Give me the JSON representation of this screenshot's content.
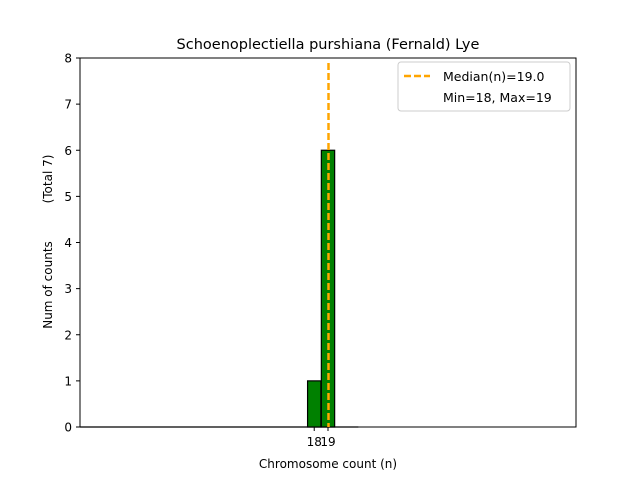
{
  "chart_data": {
    "type": "bar",
    "title": "Schoenoplectiella purshiana (Fernald) Lye",
    "xlabel": "Chromosome count (n)",
    "ylabel_main": "Num of counts",
    "ylabel_total": "(Total 7)",
    "categories": [
      "18",
      "19"
    ],
    "x": [
      18,
      19
    ],
    "values": [
      1,
      6
    ],
    "ylim": [
      0,
      8
    ],
    "yticks": [
      0,
      1,
      2,
      3,
      4,
      5,
      6,
      7,
      8
    ],
    "bar_color": "#008000",
    "median": 19.0,
    "median_color": "#FFA500",
    "legend": {
      "position": "top-right",
      "median_label": "Median(n)=19.0",
      "range_label": "Min=18, Max=19"
    },
    "grid": false
  }
}
